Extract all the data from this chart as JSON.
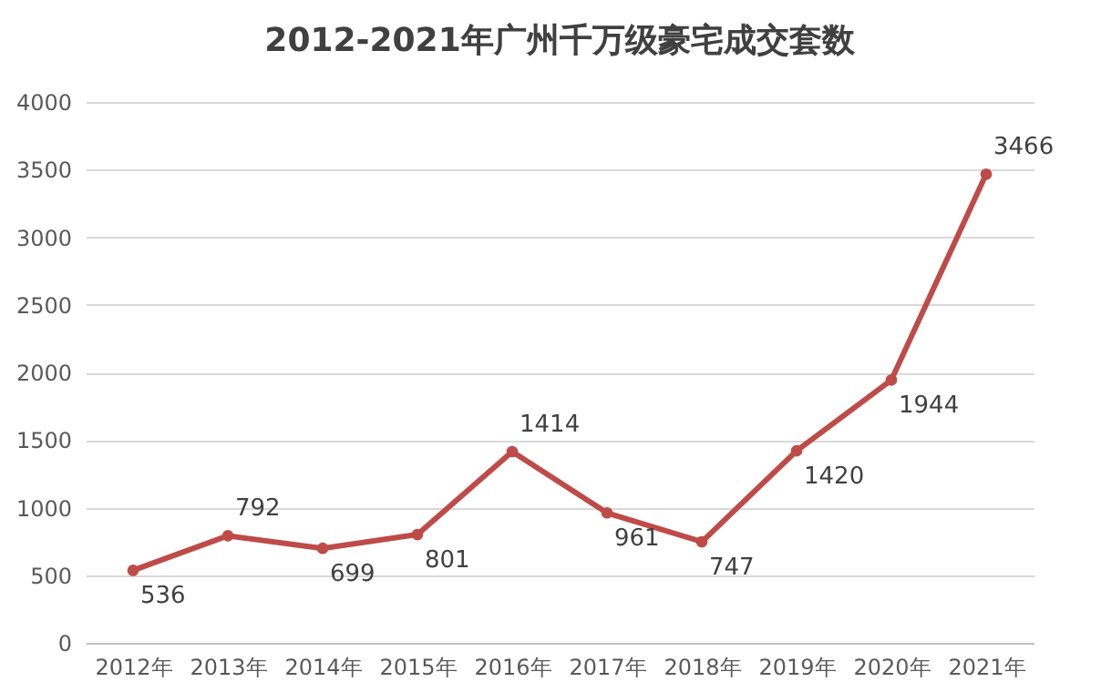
{
  "chart_data": {
    "type": "line",
    "title": "2012-2021年广州千万级豪宅成交套数",
    "categories": [
      "2012年",
      "2013年",
      "2014年",
      "2015年",
      "2016年",
      "2017年",
      "2018年",
      "2019年",
      "2020年",
      "2021年"
    ],
    "series": [
      {
        "color": "#be4b48",
        "values": [
          536,
          792,
          699,
          801,
          1414,
          961,
          747,
          1420,
          1944,
          3466
        ]
      }
    ],
    "ylim": [
      0,
      4000
    ],
    "yticks": [
      0,
      500,
      1000,
      1500,
      2000,
      2500,
      3000,
      3500,
      4000
    ],
    "grid": "y",
    "marker": "circle",
    "line_style": "solid",
    "data_labels": true,
    "legend": false
  }
}
